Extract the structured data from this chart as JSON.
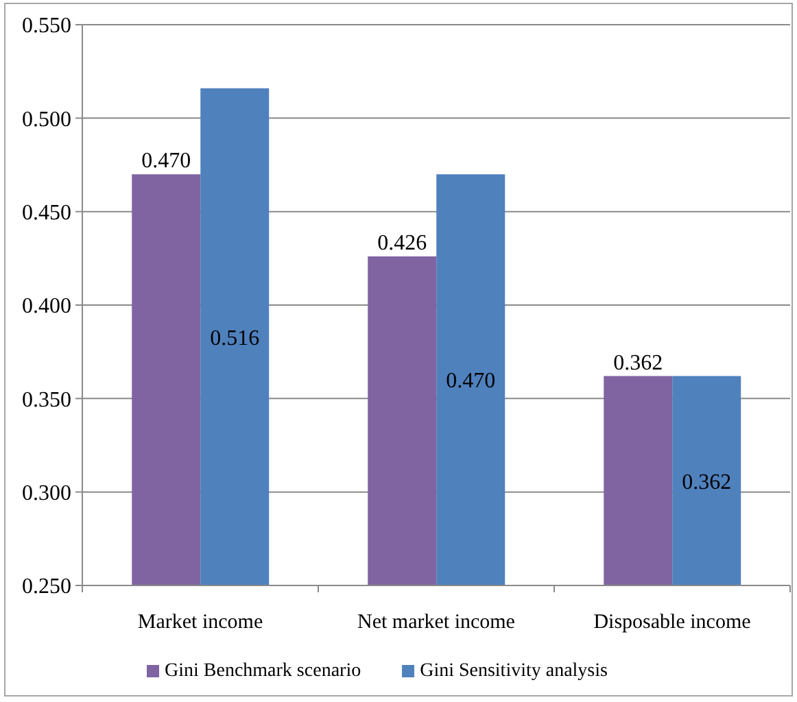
{
  "chart_data": {
    "type": "bar",
    "categories": [
      "Market income",
      "Net market income",
      "Disposable income"
    ],
    "series": [
      {
        "name": "Gini Benchmark scenario",
        "color": "#8064a2",
        "values": [
          0.47,
          0.426,
          0.362
        ],
        "value_labels": [
          "0.470",
          "0.426",
          "0.362"
        ]
      },
      {
        "name": "Gini Sensitivity analysis",
        "color": "#4f81bd",
        "values": [
          0.516,
          0.47,
          0.362
        ],
        "value_labels": [
          "0.516",
          "0.470",
          "0.362"
        ]
      }
    ],
    "ylim": [
      0.25,
      0.55
    ],
    "yticks": [
      {
        "value": 0.25,
        "label": "0.250"
      },
      {
        "value": 0.3,
        "label": "0.300"
      },
      {
        "value": 0.35,
        "label": "0.350"
      },
      {
        "value": 0.4,
        "label": "0.400"
      },
      {
        "value": 0.45,
        "label": "0.450"
      },
      {
        "value": 0.5,
        "label": "0.500"
      },
      {
        "value": 0.55,
        "label": "0.550"
      }
    ],
    "grid": "y",
    "legend": "bottom"
  }
}
